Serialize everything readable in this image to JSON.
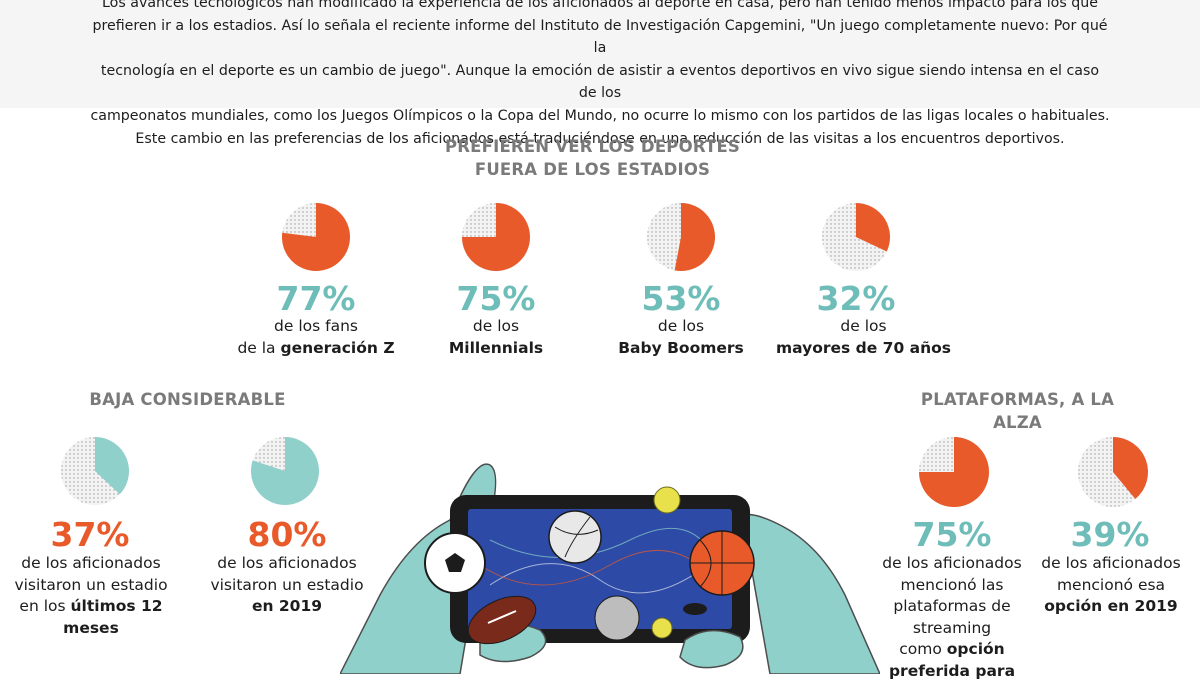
{
  "intro": {
    "line1": "Los avances tecnológicos han modificado la experiencia de los aficionados al deporte en casa, pero han tenido menos impacto para los que",
    "line2": "prefieren ir a los estadios. Así lo señala el reciente informe del Instituto de Investigación Capgemini, \"Un juego completamente nuevo: Por qué la",
    "line3": "tecnología en el deporte es un cambio de juego\". Aunque la emoción de asistir a eventos deportivos en vivo sigue siendo intensa en el caso de los",
    "line4": "campeonatos mundiales, como los Juegos Olímpicos o la Copa del Mundo, no ocurre lo mismo con los partidos de las ligas locales o habituales.",
    "line5": "Este cambio en las preferencias de los aficionados está traduciéndose en una reducción de las visitas a los encuentros deportivos."
  },
  "colors": {
    "orange": "#e85a2a",
    "teal": "#8fd0cb",
    "teal_text": "#6fbdb8",
    "title_gray": "#7a7a7a"
  },
  "chart_data": [
    {
      "type": "pie",
      "title": "PREFIEREN VER LOS DEPORTES FUERA DE LOS ESTADIOS",
      "title_line1": "PREFIEREN VER LOS DEPORTES",
      "title_line2": "FUERA DE LOS ESTADIOS",
      "items": [
        {
          "value": 77,
          "label": "77%",
          "caption_pre": "de los fans",
          "caption_line2_pre": "de la ",
          "caption_bold": "generación Z"
        },
        {
          "value": 75,
          "label": "75%",
          "caption_pre": "de los",
          "caption_bold": "Millennials"
        },
        {
          "value": 53,
          "label": "53%",
          "caption_pre": "de los",
          "caption_bold": "Baby Boomers"
        },
        {
          "value": 32,
          "label": "32%",
          "caption_pre": "de los",
          "caption_bold": "mayores de 70 años"
        }
      ]
    },
    {
      "type": "pie",
      "title": "BAJA CONSIDERABLE",
      "items": [
        {
          "value": 37,
          "label": "37%",
          "line1": "de los aficionados",
          "line2": "visitaron un estadio",
          "line3_pre": "en los ",
          "line3_bold": "últimos 12 meses"
        },
        {
          "value": 80,
          "label": "80%",
          "line1": "de los aficionados",
          "line2": "visitaron un estadio",
          "line3_bold": "en 2019"
        }
      ]
    },
    {
      "type": "pie",
      "title": "PLATAFORMAS, A LA ALZA",
      "items": [
        {
          "value": 75,
          "label": "75%",
          "line1": "de los aficionados",
          "line2": "mencionó las",
          "line3": "plataformas de",
          "line4": "streaming",
          "line5_pre": "como ",
          "line5_bold": "opción",
          "line6_bold": "preferida para"
        },
        {
          "value": 39,
          "label": "39%",
          "line1": "de los aficionados",
          "line2": "mencionó esa",
          "line3_bold": "opción en 2019"
        }
      ]
    }
  ]
}
